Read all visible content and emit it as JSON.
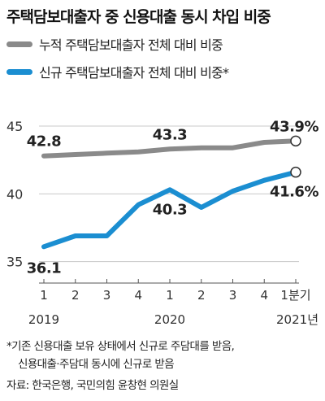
{
  "title": "주택담보대출자 중 신용대출 동시 차입 비중",
  "colors": {
    "cumulative": "#8a8a8a",
    "new": "#1b8ed1",
    "grid": "#c8c8c8",
    "text": "#222222"
  },
  "chart_data": {
    "type": "line",
    "title": "주택담보대출자 중 신용대출 동시 차입 비중",
    "x": [
      "2019 Q1",
      "2019 Q2",
      "2019 Q3",
      "2019 Q4",
      "2020 Q1",
      "2020 Q2",
      "2020 Q3",
      "2020 Q4",
      "2021 Q1"
    ],
    "tick_labels": [
      "1",
      "2",
      "3",
      "4",
      "1",
      "2",
      "3",
      "4",
      "1분기"
    ],
    "year_labels": [
      {
        "label": "2019",
        "index": 0
      },
      {
        "label": "2020",
        "index": 4
      },
      {
        "label": "2021년",
        "index": 8
      }
    ],
    "ylim": [
      34.5,
      46.5
    ],
    "yticks": [
      35,
      40,
      45
    ],
    "grid": "horizontal",
    "legend_position": "top-left",
    "series": [
      {
        "key": "cumulative",
        "name": "누적 주택담보대출자 전체 대비 비중",
        "values": [
          42.8,
          42.9,
          43.0,
          43.1,
          43.3,
          43.4,
          43.4,
          43.8,
          43.9
        ],
        "labels": [
          {
            "index": 0,
            "text": "42.8"
          },
          {
            "index": 4,
            "text": "43.3"
          },
          {
            "index": 8,
            "text": "43.9%"
          }
        ]
      },
      {
        "key": "new",
        "name": "신규 주택담보대출자 전체 대비 비중*",
        "values": [
          36.1,
          36.9,
          36.9,
          39.2,
          40.3,
          39.0,
          40.2,
          41.0,
          41.6
        ],
        "labels": [
          {
            "index": 0,
            "text": "36.1"
          },
          {
            "index": 4,
            "text": "40.3"
          },
          {
            "index": 8,
            "text": "41.6%"
          }
        ]
      }
    ]
  },
  "footnote": {
    "line1": "*기존 신용대출 보유 상태에서 신규로 주담대를 받음,",
    "line2": "신용대출·주담대 동시에 신규로 받음"
  },
  "source": "자료: 한국은행, 국민의힘 윤창현 의원실"
}
